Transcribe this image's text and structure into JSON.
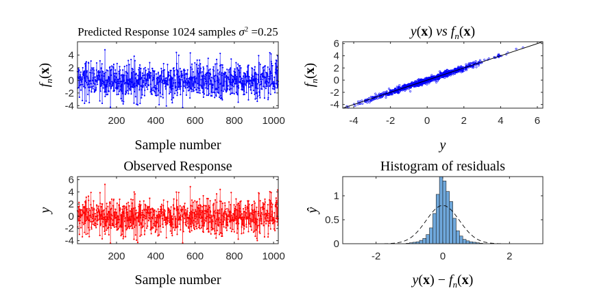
{
  "figure": {
    "panels": [
      {
        "id": "p1",
        "title_parts": [
          "Predicted Response 1024 samples ",
          "σ",
          "2",
          " =0.25"
        ],
        "xlabel": "Sample number",
        "ylabel_parts": [
          "f",
          "n",
          "(",
          "x",
          ")"
        ],
        "color": "#0000ff"
      },
      {
        "id": "p2",
        "title_parts": [
          "y",
          "(",
          "x",
          ")",
          " vs ",
          "f",
          "n",
          "(",
          "x",
          ")"
        ],
        "xlabel": "y",
        "ylabel_parts": [
          "f",
          "n",
          "(",
          "x",
          ")"
        ],
        "color": "#0000ff"
      },
      {
        "id": "p3",
        "title": "Observed Response",
        "xlabel": "Sample number",
        "ylabel": "y",
        "color": "#ff0000"
      },
      {
        "id": "p4",
        "title": "Histogram of residuals",
        "xlabel_parts": [
          "y",
          "(",
          "x",
          ")",
          " − ",
          "f",
          "n",
          "(",
          "x",
          ")"
        ],
        "ylabel": "ŷ",
        "bar_color": "#6fa8dc",
        "bar_edge": "#1a1a1a"
      }
    ]
  },
  "chart_data": [
    {
      "type": "line",
      "title": "Predicted Response 1024 samples σ² =0.25",
      "xlabel": "Sample number",
      "ylabel": "f_n(x)",
      "n_samples": 1024,
      "xlim": [
        1,
        1024
      ],
      "ylim": [
        -4.4,
        6.1
      ],
      "xticks": [
        200,
        400,
        600,
        800,
        1000
      ],
      "yticks": [
        -4,
        -2,
        0,
        2,
        4
      ],
      "marker": "dot",
      "color": "#0000ff"
    },
    {
      "type": "scatter",
      "title": "y(x) vs f_n(x)",
      "xlabel": "y",
      "ylabel": "f_n(x)",
      "xlim": [
        -4.6,
        6.3
      ],
      "ylim": [
        -4.6,
        6.3
      ],
      "xticks": [
        -4,
        -2,
        0,
        2,
        4,
        6
      ],
      "yticks": [
        -4,
        -2,
        0,
        2,
        4,
        6
      ],
      "reference_line": {
        "from": [
          -4.6,
          -4.6
        ],
        "to": [
          6.3,
          6.3
        ]
      },
      "color": "#0000ff"
    },
    {
      "type": "line",
      "title": "Observed Response",
      "xlabel": "Sample number",
      "ylabel": "y",
      "n_samples": 1024,
      "xlim": [
        1,
        1024
      ],
      "ylim": [
        -4.5,
        6.5
      ],
      "xticks": [
        200,
        400,
        600,
        800,
        1000
      ],
      "yticks": [
        -4,
        -2,
        0,
        2,
        4,
        6
      ],
      "marker": "dot",
      "color": "#ff0000"
    },
    {
      "type": "bar",
      "title": "Histogram of residuals",
      "xlabel": "y(x) − f_n(x)",
      "ylabel": "ŷ",
      "xlim": [
        -3,
        3
      ],
      "ylim": [
        0,
        1.4
      ],
      "xticks": [
        -2,
        0,
        2
      ],
      "yticks": [
        0,
        0.5,
        1
      ],
      "bin_width": 0.1,
      "bins": [
        {
          "x": -1.05,
          "h": 0.01
        },
        {
          "x": -0.95,
          "h": 0.02
        },
        {
          "x": -0.85,
          "h": 0.03
        },
        {
          "x": -0.75,
          "h": 0.04
        },
        {
          "x": -0.65,
          "h": 0.07
        },
        {
          "x": -0.55,
          "h": 0.11
        },
        {
          "x": -0.45,
          "h": 0.19
        },
        {
          "x": -0.35,
          "h": 0.33
        },
        {
          "x": -0.25,
          "h": 0.63
        },
        {
          "x": -0.15,
          "h": 1.03
        },
        {
          "x": -0.05,
          "h": 1.4
        },
        {
          "x": 0.05,
          "h": 1.31
        },
        {
          "x": 0.15,
          "h": 1.09
        },
        {
          "x": 0.25,
          "h": 0.88
        },
        {
          "x": 0.35,
          "h": 0.53
        },
        {
          "x": 0.45,
          "h": 0.27
        },
        {
          "x": 0.55,
          "h": 0.16
        },
        {
          "x": 0.65,
          "h": 0.09
        },
        {
          "x": 0.75,
          "h": 0.06
        },
        {
          "x": 0.85,
          "h": 0.04
        },
        {
          "x": 0.95,
          "h": 0.03
        },
        {
          "x": 1.05,
          "h": 0.02
        },
        {
          "x": 1.15,
          "h": 0.01
        }
      ],
      "normal_pdf": {
        "mean": 0,
        "sigma": 0.5,
        "style": "dashed",
        "color": "#000000"
      }
    }
  ]
}
